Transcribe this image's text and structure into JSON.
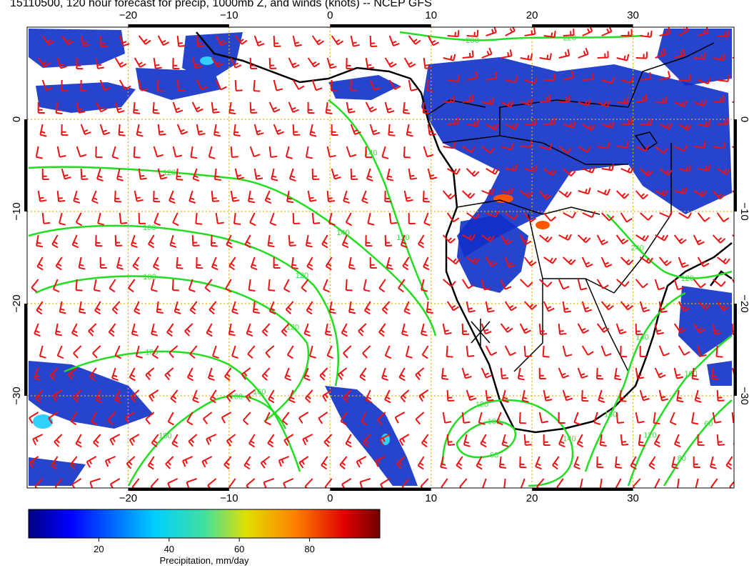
{
  "title": "15110500, 120 hour forecast for precip, 1000mb Z, and winds (knots) -- NCEP GFS",
  "map": {
    "lon_range": [
      -30,
      40
    ],
    "lat_range": [
      -40,
      10
    ],
    "lon_ticks": [
      -20,
      -10,
      0,
      10,
      20,
      30
    ],
    "lat_ticks": [
      0,
      -10,
      -20,
      -30
    ],
    "lon_tick_labels": [
      "−20",
      "−10",
      "0",
      "10",
      "20",
      "30"
    ],
    "lat_tick_labels": [
      "0",
      "−10",
      "−20",
      "−30"
    ]
  },
  "contours": {
    "color": "#22dd22",
    "labels": [
      "120",
      "140",
      "160",
      "120",
      "100",
      "120",
      "140",
      "120",
      "100",
      "160",
      "180",
      "160",
      "100",
      "60",
      "120",
      "140",
      "160",
      "140",
      "120",
      "100",
      "80",
      "60",
      "200",
      "220",
      "240",
      "120"
    ]
  },
  "colorbar": {
    "ticks": [
      "20",
      "40",
      "60",
      "80"
    ],
    "label": "Precipitation, mm/day",
    "min": 0,
    "max": 100
  },
  "colors": {
    "wind_barbs": "#ee1111",
    "coastline": "#000000",
    "gridlines": "#e8b000",
    "precip_low": "#000090",
    "precip_high": "#800000"
  }
}
